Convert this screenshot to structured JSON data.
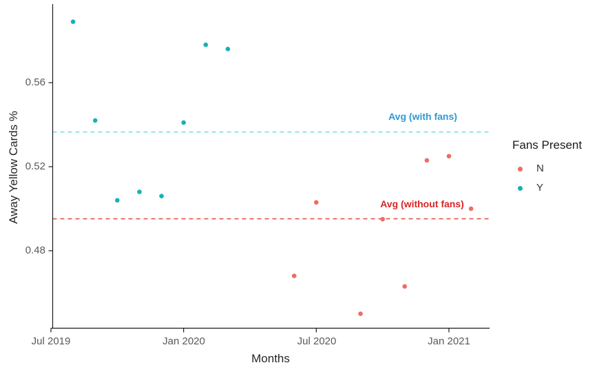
{
  "chart_data": {
    "type": "scatter",
    "title": "",
    "xlabel": "Months",
    "ylabel": "Away Yellow Cards %",
    "grid": false,
    "background": "#ffffff",
    "axis_color": "#1a1a1a",
    "tick_label_color": "#595959",
    "x_axis": {
      "ticks": [
        "Jul 2019",
        "Jan 2020",
        "Jul 2020",
        "Jan 2021"
      ],
      "range": [
        "Jul 2019",
        "Mar 2021"
      ]
    },
    "y_axis": {
      "ticks": [
        0.56,
        0.52,
        0.48
      ],
      "tick_labels": [
        "0.56",
        "0.52",
        "0.48"
      ],
      "range": [
        0.443,
        0.597
      ]
    },
    "legend": {
      "title": "Fans Present",
      "position": "right"
    },
    "series": [
      {
        "name": "N",
        "color": "#ee6c64",
        "points": [
          {
            "month": "Jun 2020",
            "value": 0.468
          },
          {
            "month": "Jul 2020",
            "value": 0.503
          },
          {
            "month": "Sep 2020",
            "value": 0.45
          },
          {
            "month": "Oct 2020",
            "value": 0.495
          },
          {
            "month": "Nov 2020",
            "value": 0.463
          },
          {
            "month": "Dec 2020",
            "value": 0.523
          },
          {
            "month": "Jan 2021",
            "value": 0.525
          },
          {
            "month": "Feb 2021",
            "value": 0.5
          }
        ]
      },
      {
        "name": "Y",
        "color": "#17b1b7",
        "points": [
          {
            "month": "Aug 2019",
            "value": 0.589
          },
          {
            "month": "Sep 2019",
            "value": 0.542
          },
          {
            "month": "Oct 2019",
            "value": 0.504
          },
          {
            "month": "Nov 2019",
            "value": 0.508
          },
          {
            "month": "Dec 2019",
            "value": 0.506
          },
          {
            "month": "Jan 2020",
            "value": 0.541
          },
          {
            "month": "Feb 2020",
            "value": 0.578
          },
          {
            "month": "Mar 2020",
            "value": 0.576
          }
        ]
      }
    ],
    "reference_lines": [
      {
        "id": "with_fans",
        "label": "Avg (with fans)",
        "value": 0.5365,
        "style": "dashed",
        "line_color": "#78e0e3",
        "label_color": "#2b9ad4"
      },
      {
        "id": "without_fans",
        "label": "Avg (without fans)",
        "value": 0.4952,
        "style": "dashed",
        "line_color": "#e45d54",
        "label_color": "#da2424"
      }
    ]
  }
}
